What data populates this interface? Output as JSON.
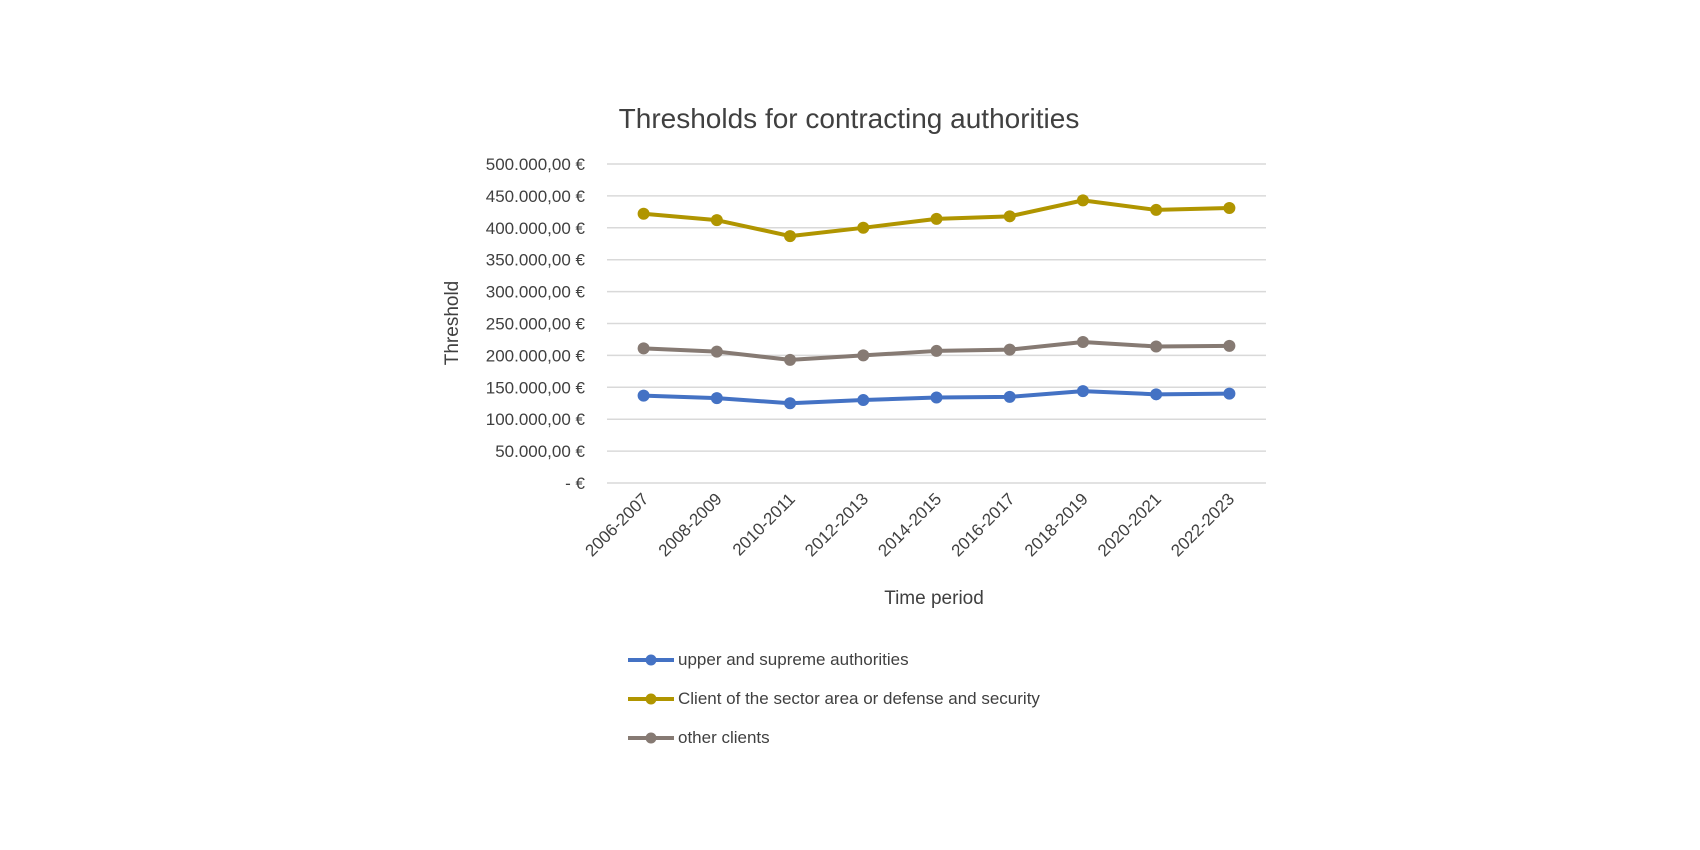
{
  "chart_data": {
    "type": "line",
    "title": "Thresholds for contracting authorities",
    "xlabel": "Time period",
    "ylabel": "Threshold",
    "categories": [
      "2006-2007",
      "2008-2009",
      "2010-2011",
      "2012-2013",
      "2014-2015",
      "2016-2017",
      "2018-2019",
      "2020-2021",
      "2022-2023"
    ],
    "ylim": [
      0,
      500000
    ],
    "yticks": [
      0,
      50000,
      100000,
      150000,
      200000,
      250000,
      300000,
      350000,
      400000,
      450000,
      500000
    ],
    "ytick_labels": [
      "-   €",
      "50.000,00 €",
      "100.000,00 €",
      "150.000,00 €",
      "200.000,00 €",
      "250.000,00 €",
      "300.000,00 €",
      "350.000,00 €",
      "400.000,00 €",
      "450.000,00 €",
      "500.000,00 €"
    ],
    "grid": true,
    "legend_position": "bottom",
    "series": [
      {
        "name": "upper and supreme authorities",
        "color": "#4472C4",
        "values": [
          137000,
          133000,
          125000,
          130000,
          134000,
          135000,
          144000,
          139000,
          140000
        ]
      },
      {
        "name": "Client of the sector area or defense and security",
        "color": "#B09500",
        "values": [
          422000,
          412000,
          387000,
          400000,
          414000,
          418000,
          443000,
          428000,
          431000
        ]
      },
      {
        "name": "other clients",
        "color": "#867A73",
        "values": [
          211000,
          206000,
          193000,
          200000,
          207000,
          209000,
          221000,
          214000,
          215000
        ]
      }
    ]
  }
}
